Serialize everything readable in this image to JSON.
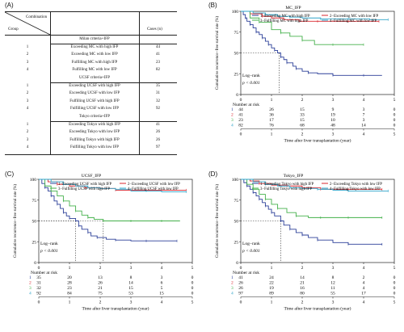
{
  "panels": {
    "a": "(A)",
    "b": "(B)",
    "c": "(C)",
    "d": "(D)"
  },
  "table": {
    "combination_label": "Combination",
    "group_label": "Group",
    "cases_label": "Cases (n)",
    "sections": [
      {
        "title": "Milan criteria+IFP",
        "rows": [
          {
            "group": "1",
            "name": "Exceeding MC with high IFP",
            "cases": "44"
          },
          {
            "group": "2",
            "name": "Exceeding MC with low IFP",
            "cases": "41"
          },
          {
            "group": "3",
            "name": "Fulfilling MC with high IFP",
            "cases": "23"
          },
          {
            "group": "4",
            "name": "Fulfilling MC with low IFP",
            "cases": "82"
          }
        ]
      },
      {
        "title": "UCSF criteria+IFP",
        "rows": [
          {
            "group": "1",
            "name": "Exceeding UCSF with high IFP",
            "cases": "35"
          },
          {
            "group": "2",
            "name": "Exceeding UCSF with low IFP",
            "cases": "31"
          },
          {
            "group": "3",
            "name": "Fulfilling UCSF with high IFP",
            "cases": "32"
          },
          {
            "group": "4",
            "name": "Fulfilling UCSF with low IFP",
            "cases": "92"
          }
        ]
      },
      {
        "title": "Tokyo criteria+IFP",
        "rows": [
          {
            "group": "1",
            "name": "Exceeding Tokyo with high IFP",
            "cases": "41"
          },
          {
            "group": "2",
            "name": "Exceeding Tokyo with low IFP",
            "cases": "26"
          },
          {
            "group": "3",
            "name": "Fulfilling Tokyo with high IFP",
            "cases": "26"
          },
          {
            "group": "4",
            "name": "Fulfilling Tokyo with low IFP",
            "cases": "97"
          }
        ]
      }
    ]
  },
  "chart_data": [
    {
      "panel": "B",
      "type": "line",
      "title": "MC_IFP",
      "ylabel": "Cumulative recurrence−free survival rate (%)",
      "xlabel": "Time after liver transplantation (year)",
      "xlim": [
        0,
        5
      ],
      "ylim": [
        0,
        100
      ],
      "xticks": [
        "0",
        "1",
        "2",
        "3",
        "4",
        "5"
      ],
      "yticks": [
        "0",
        "25",
        "50",
        "75",
        "100"
      ],
      "logrank": "Log−rank",
      "pvalue": "p < 0.001",
      "risk_title": "Number at risk",
      "risk_groups": [
        "1",
        "2",
        "3",
        "4"
      ],
      "risk_rows": [
        [
          "44",
          "26",
          "15",
          "9",
          "3",
          "0"
        ],
        [
          "41",
          "36",
          "33",
          "19",
          "7",
          "0"
        ],
        [
          "23",
          "17",
          "15",
          "10",
          "3",
          "0"
        ],
        [
          "82",
          "76",
          "68",
          "48",
          "14",
          "0"
        ]
      ],
      "median_lines": [
        [
          1.25,
          50
        ]
      ],
      "series": [
        {
          "name": "1−Exceeding MC with high IFP",
          "color": "#2b3f98",
          "points": [
            [
              0,
              100
            ],
            [
              0.08,
              96
            ],
            [
              0.15,
              92
            ],
            [
              0.2,
              88
            ],
            [
              0.3,
              84
            ],
            [
              0.4,
              80
            ],
            [
              0.5,
              75
            ],
            [
              0.6,
              72
            ],
            [
              0.7,
              68
            ],
            [
              0.8,
              64
            ],
            [
              0.9,
              60
            ],
            [
              1.0,
              56
            ],
            [
              1.1,
              53
            ],
            [
              1.2,
              50
            ],
            [
              1.3,
              45
            ],
            [
              1.4,
              42
            ],
            [
              1.5,
              38
            ],
            [
              1.7,
              34
            ],
            [
              1.8,
              31
            ],
            [
              2.0,
              28
            ],
            [
              2.2,
              26
            ],
            [
              2.5,
              25
            ],
            [
              3.0,
              23
            ],
            [
              3.5,
              23
            ],
            [
              4.0,
              23
            ],
            [
              4.6,
              23
            ]
          ]
        },
        {
          "name": "2−Exceeding MC with low IFP",
          "color": "#d8262e",
          "points": [
            [
              0,
              100
            ],
            [
              0.3,
              97
            ],
            [
              0.7,
              94
            ],
            [
              1.0,
              92
            ],
            [
              1.4,
              90
            ],
            [
              1.9,
              88
            ],
            [
              2.5,
              88
            ],
            [
              3.0,
              88
            ],
            [
              3.5,
              88
            ],
            [
              4.0,
              88
            ],
            [
              4.5,
              88
            ]
          ]
        },
        {
          "name": "3−Fulfilling MC with high IFP",
          "color": "#43b04a",
          "points": [
            [
              0,
              100
            ],
            [
              0.3,
              92
            ],
            [
              0.6,
              87
            ],
            [
              1.0,
              78
            ],
            [
              1.3,
              74
            ],
            [
              1.6,
              70
            ],
            [
              2.0,
              65
            ],
            [
              2.4,
              60
            ],
            [
              3.0,
              60
            ],
            [
              3.5,
              60
            ],
            [
              4.0,
              60
            ]
          ]
        },
        {
          "name": "4−Fulfilling MC with low IFP",
          "color": "#2fa4c9",
          "points": [
            [
              0,
              100
            ],
            [
              0.4,
              98
            ],
            [
              0.8,
              96
            ],
            [
              1.2,
              94
            ],
            [
              1.6,
              93
            ],
            [
              2.0,
              92
            ],
            [
              2.6,
              91
            ],
            [
              3.0,
              91
            ],
            [
              3.5,
              91
            ],
            [
              4.2,
              90
            ],
            [
              4.8,
              90
            ]
          ]
        }
      ]
    },
    {
      "panel": "C",
      "type": "line",
      "title": "UCSF_IFP",
      "ylabel": "Cumulative recurrence−free survival rate (%)",
      "xlabel": "Time after liver transplantation (year)",
      "xlim": [
        0,
        5
      ],
      "ylim": [
        0,
        100
      ],
      "xticks": [
        "0",
        "1",
        "2",
        "3",
        "4",
        "5"
      ],
      "yticks": [
        "0",
        "25",
        "50",
        "75",
        "100"
      ],
      "logrank": "Log−rank",
      "pvalue": "p < 0.001",
      "risk_title": "Number at risk",
      "risk_groups": [
        "1",
        "2",
        "3",
        "4"
      ],
      "risk_rows": [
        [
          "35",
          "20",
          "13",
          "8",
          "3",
          "0"
        ],
        [
          "31",
          "28",
          "26",
          "14",
          "6",
          "0"
        ],
        [
          "32",
          "23",
          "21",
          "15",
          "5",
          "0"
        ],
        [
          "92",
          "84",
          "75",
          "53",
          "15",
          "0"
        ]
      ],
      "median_lines": [
        [
          1.2,
          50
        ],
        [
          2.1,
          50
        ]
      ],
      "series": [
        {
          "name": "1−Exceeding UCSF with high IFP",
          "color": "#2b3f98",
          "points": [
            [
              0,
              100
            ],
            [
              0.1,
              95
            ],
            [
              0.2,
              90
            ],
            [
              0.3,
              86
            ],
            [
              0.4,
              80
            ],
            [
              0.5,
              74
            ],
            [
              0.6,
              70
            ],
            [
              0.7,
              65
            ],
            [
              0.8,
              60
            ],
            [
              0.9,
              56
            ],
            [
              1.0,
              53
            ],
            [
              1.2,
              50
            ],
            [
              1.3,
              44
            ],
            [
              1.4,
              40
            ],
            [
              1.6,
              36
            ],
            [
              1.7,
              32
            ],
            [
              1.9,
              30
            ],
            [
              2.2,
              28
            ],
            [
              2.5,
              27
            ],
            [
              3.0,
              26
            ],
            [
              3.5,
              26
            ],
            [
              4.0,
              26
            ],
            [
              4.5,
              26
            ]
          ]
        },
        {
          "name": "2−Exceeding UCSF with low IFP",
          "color": "#d8262e",
          "points": [
            [
              0,
              100
            ],
            [
              0.3,
              97
            ],
            [
              0.6,
              94
            ],
            [
              1.0,
              92
            ],
            [
              1.5,
              90
            ],
            [
              2.0,
              89
            ],
            [
              2.5,
              87
            ],
            [
              3.0,
              87
            ],
            [
              3.5,
              87
            ],
            [
              4.0,
              87
            ],
            [
              4.8,
              87
            ]
          ]
        },
        {
          "name": "3−Fulfilling UCSF with high IFP",
          "color": "#43b04a",
          "points": [
            [
              0,
              100
            ],
            [
              0.2,
              92
            ],
            [
              0.4,
              86
            ],
            [
              0.6,
              80
            ],
            [
              0.8,
              74
            ],
            [
              1.0,
              68
            ],
            [
              1.2,
              62
            ],
            [
              1.4,
              57
            ],
            [
              1.6,
              54
            ],
            [
              1.8,
              52
            ],
            [
              2.1,
              50
            ],
            [
              2.5,
              50
            ],
            [
              3.0,
              50
            ],
            [
              3.5,
              50
            ],
            [
              4.0,
              50
            ],
            [
              4.6,
              50
            ]
          ]
        },
        {
          "name": "4−Fulfilling UCSF with low IFP",
          "color": "#2fa4c9",
          "points": [
            [
              0,
              100
            ],
            [
              0.4,
              97
            ],
            [
              0.8,
              94
            ],
            [
              1.2,
              92
            ],
            [
              1.6,
              90
            ],
            [
              2.0,
              89
            ],
            [
              2.5,
              88
            ],
            [
              3.0,
              86
            ],
            [
              3.5,
              86
            ],
            [
              4.0,
              85
            ],
            [
              4.8,
              85
            ]
          ]
        }
      ]
    },
    {
      "panel": "D",
      "type": "line",
      "title": "Tokyo_IFP",
      "ylabel": "Cumulative recurrence−free survival rate (%)",
      "xlabel": "Time after liver transplantation (year)",
      "xlim": [
        0,
        5
      ],
      "ylim": [
        0,
        100
      ],
      "xticks": [
        "0",
        "1",
        "2",
        "3",
        "4",
        "5"
      ],
      "yticks": [
        "0",
        "25",
        "50",
        "75",
        "100"
      ],
      "logrank": "Log−rank",
      "pvalue": "p < 0.001",
      "risk_title": "Number at risk",
      "risk_groups": [
        "1",
        "2",
        "3",
        "4"
      ],
      "risk_rows": [
        [
          "41",
          "24",
          "14",
          "8",
          "2",
          "0"
        ],
        [
          "26",
          "22",
          "21",
          "12",
          "4",
          "0"
        ],
        [
          "26",
          "19",
          "16",
          "11",
          "4",
          "0"
        ],
        [
          "97",
          "89",
          "80",
          "55",
          "17",
          "0"
        ]
      ],
      "median_lines": [
        [
          1.3,
          50
        ]
      ],
      "series": [
        {
          "name": "1−Exceeding Tokyo with high IFP",
          "color": "#2b3f98",
          "points": [
            [
              0,
              100
            ],
            [
              0.1,
              96
            ],
            [
              0.2,
              92
            ],
            [
              0.3,
              88
            ],
            [
              0.4,
              84
            ],
            [
              0.5,
              80
            ],
            [
              0.6,
              76
            ],
            [
              0.7,
              72
            ],
            [
              0.8,
              68
            ],
            [
              0.9,
              64
            ],
            [
              1.0,
              60
            ],
            [
              1.1,
              56
            ],
            [
              1.3,
              50
            ],
            [
              1.4,
              45
            ],
            [
              1.6,
              40
            ],
            [
              1.8,
              36
            ],
            [
              2.0,
              33
            ],
            [
              2.2,
              30
            ],
            [
              2.5,
              27
            ],
            [
              3.0,
              24
            ],
            [
              3.5,
              22
            ],
            [
              4.0,
              22
            ],
            [
              4.6,
              22
            ]
          ]
        },
        {
          "name": "2−Exceeding Tokyo with low IFP",
          "color": "#d8262e",
          "points": [
            [
              0,
              100
            ],
            [
              0.3,
              98
            ],
            [
              0.6,
              95
            ],
            [
              1.0,
              93
            ],
            [
              1.5,
              92
            ],
            [
              2.0,
              90
            ],
            [
              2.6,
              88
            ],
            [
              3.0,
              88
            ],
            [
              3.5,
              88
            ],
            [
              4.0,
              88
            ],
            [
              4.6,
              88
            ]
          ]
        },
        {
          "name": "3−Fulfilling Tokyo with high IFP",
          "color": "#43b04a",
          "points": [
            [
              0,
              100
            ],
            [
              0.2,
              94
            ],
            [
              0.4,
              88
            ],
            [
              0.6,
              82
            ],
            [
              0.8,
              76
            ],
            [
              1.0,
              70
            ],
            [
              1.2,
              65
            ],
            [
              1.5,
              60
            ],
            [
              1.8,
              56
            ],
            [
              2.2,
              54
            ],
            [
              2.6,
              54
            ],
            [
              3.0,
              54
            ],
            [
              3.5,
              54
            ],
            [
              4.0,
              54
            ],
            [
              4.6,
              54
            ]
          ]
        },
        {
          "name": "4−Fulfilling Tokyo with low IFP",
          "color": "#2fa4c9",
          "points": [
            [
              0,
              100
            ],
            [
              0.4,
              97
            ],
            [
              0.8,
              94
            ],
            [
              1.2,
              92
            ],
            [
              1.6,
              90
            ],
            [
              2.0,
              89
            ],
            [
              2.5,
              88
            ],
            [
              3.0,
              87
            ],
            [
              3.5,
              86
            ],
            [
              4.0,
              86
            ],
            [
              4.8,
              86
            ]
          ]
        }
      ]
    }
  ]
}
